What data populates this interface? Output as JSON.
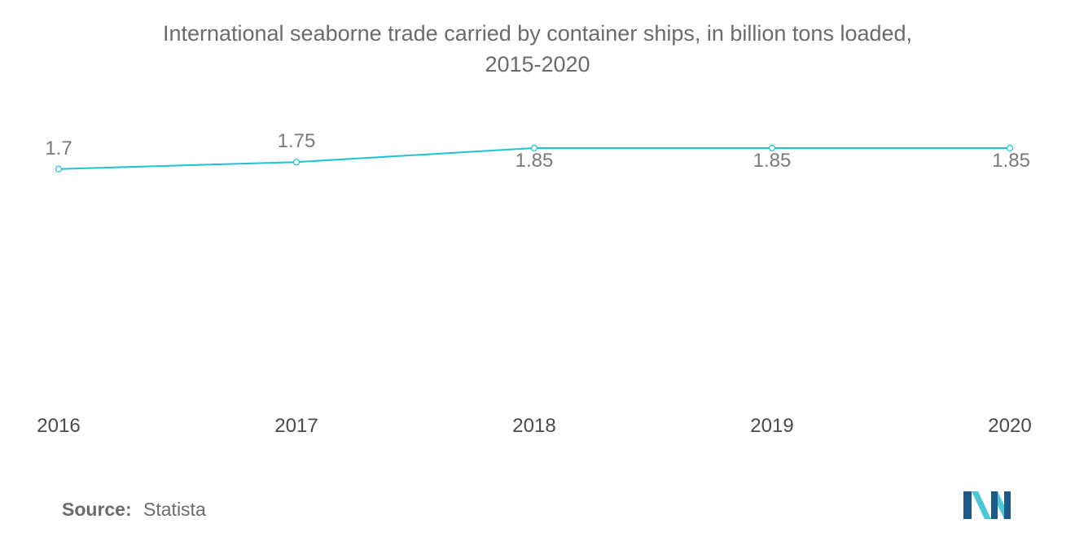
{
  "chart_data": {
    "type": "line",
    "title": "International seaborne trade carried by container ships, in billion tons loaded,",
    "subtitle": "2015-2020",
    "categories": [
      "2016",
      "2017",
      "2018",
      "2019",
      "2020"
    ],
    "series": [
      {
        "values": [
          1.7,
          1.75,
          1.85,
          1.85,
          1.85
        ],
        "labels": [
          "1.7",
          "1.75",
          "1.85",
          "1.85",
          "1.85"
        ]
      }
    ],
    "xlabel": "",
    "ylabel": "",
    "ylim": [
      0,
      1.85
    ],
    "grid": false,
    "line_color": "#1fc3d2"
  },
  "source": {
    "label": "Source:",
    "value": "Statista"
  },
  "logo": {
    "icon": "mordor-intelligence-logo-icon",
    "colors": [
      "#1c5a8a",
      "#4cc8d4"
    ]
  }
}
